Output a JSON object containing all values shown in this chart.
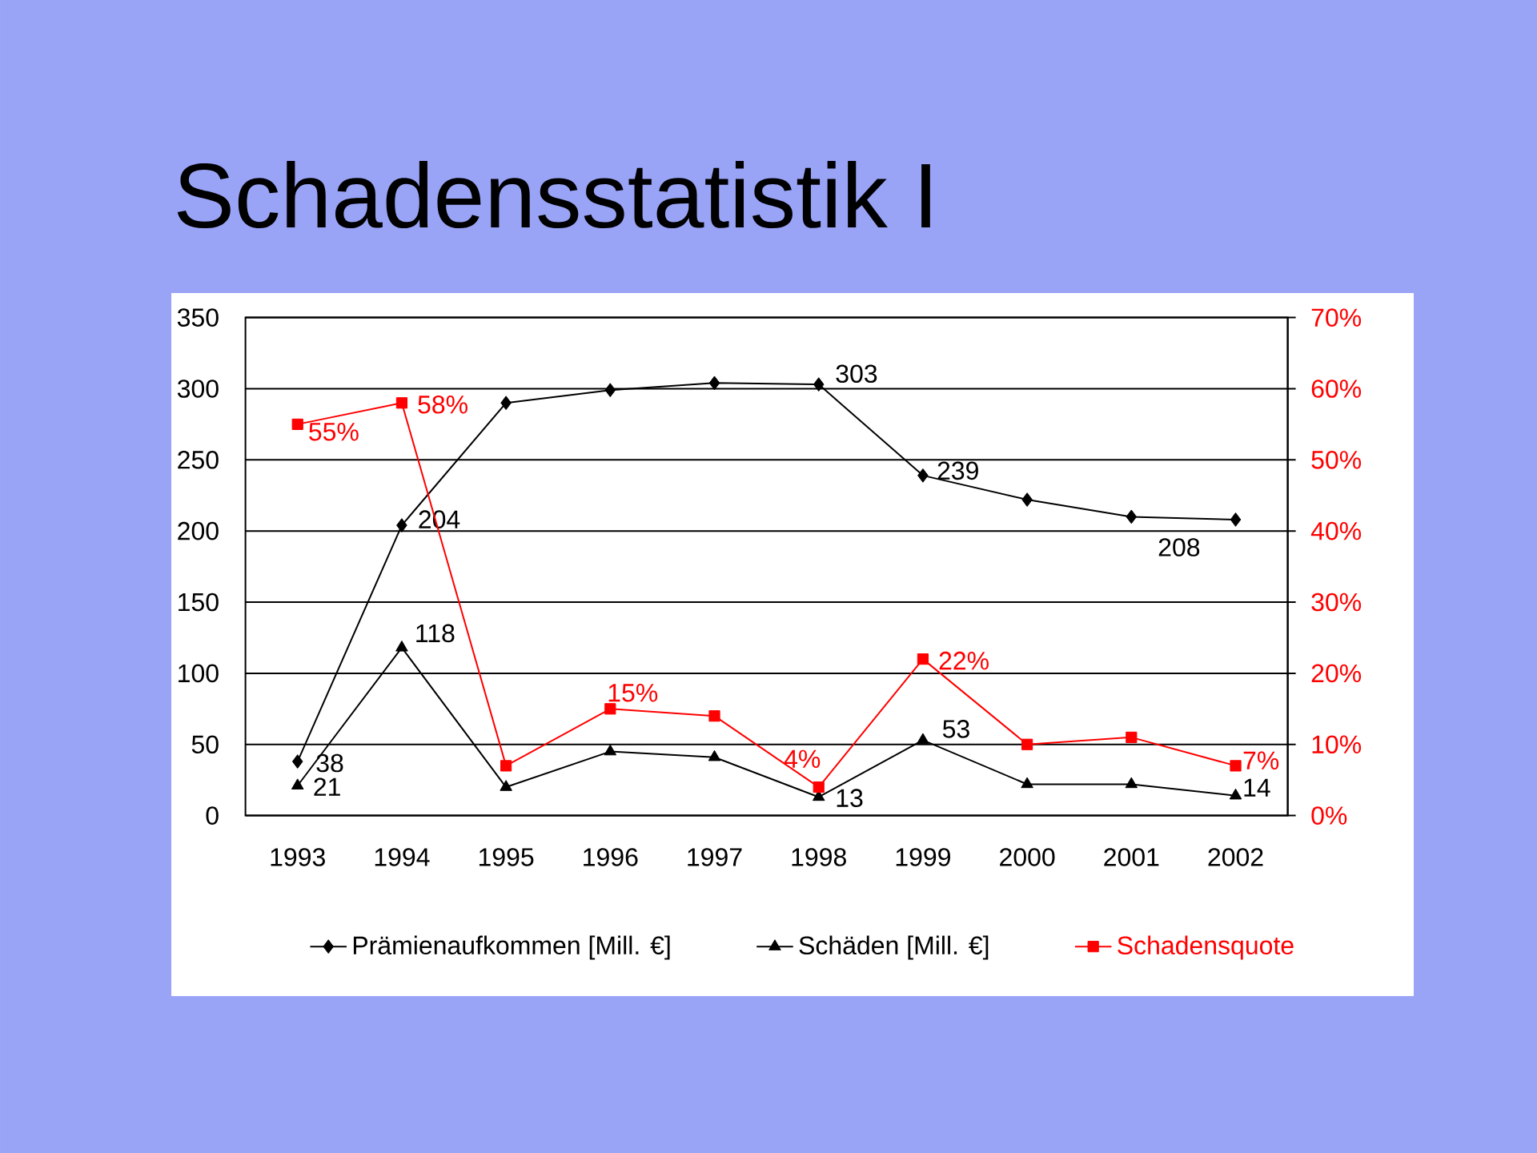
{
  "chart_data": {
    "type": "line",
    "title": "Schadensstatistik I",
    "categories": [
      "1993",
      "1994",
      "1995",
      "1996",
      "1997",
      "1998",
      "1999",
      "2000",
      "2001",
      "2002"
    ],
    "series": [
      {
        "name": "Prämienaufkommen [Mill. €]",
        "color": "#000000",
        "marker": "diamond",
        "values": [
          38,
          204,
          290,
          299,
          304,
          303,
          239,
          222,
          210,
          208
        ],
        "value_labels": [
          "38",
          "204",
          null,
          null,
          null,
          "303",
          "239",
          null,
          null,
          "208"
        ]
      },
      {
        "name": "Schäden [Mill. €]",
        "color": "#000000",
        "marker": "triangle",
        "values": [
          21,
          118,
          20,
          45,
          41,
          13,
          53,
          22,
          22,
          14
        ],
        "value_labels": [
          "21",
          "118",
          null,
          null,
          null,
          "13",
          "53",
          null,
          null,
          "14"
        ]
      },
      {
        "name": "Schadensquote",
        "color": "#ff0000",
        "marker": "square",
        "axis": "y2",
        "values": [
          55,
          58,
          7,
          15,
          14,
          4,
          22,
          10,
          11,
          7
        ],
        "value_labels": [
          "55%",
          "58%",
          null,
          "15%",
          null,
          "4%",
          "22%",
          null,
          null,
          "7%"
        ]
      }
    ],
    "ylim": [
      0,
      350
    ],
    "yticks": [
      0,
      50,
      100,
      150,
      200,
      250,
      300,
      350
    ],
    "y2lim": [
      0,
      70
    ],
    "y2ticks": [
      {
        "value": 0,
        "label": "0%"
      },
      {
        "value": 10,
        "label": "10%"
      },
      {
        "value": 20,
        "label": "20%"
      },
      {
        "value": 30,
        "label": "30%"
      },
      {
        "value": 40,
        "label": "40%"
      },
      {
        "value": 50,
        "label": "50%"
      },
      {
        "value": 60,
        "label": "60%"
      },
      {
        "value": 70,
        "label": "70%"
      }
    ],
    "grid": "y",
    "legend": "bottom"
  }
}
